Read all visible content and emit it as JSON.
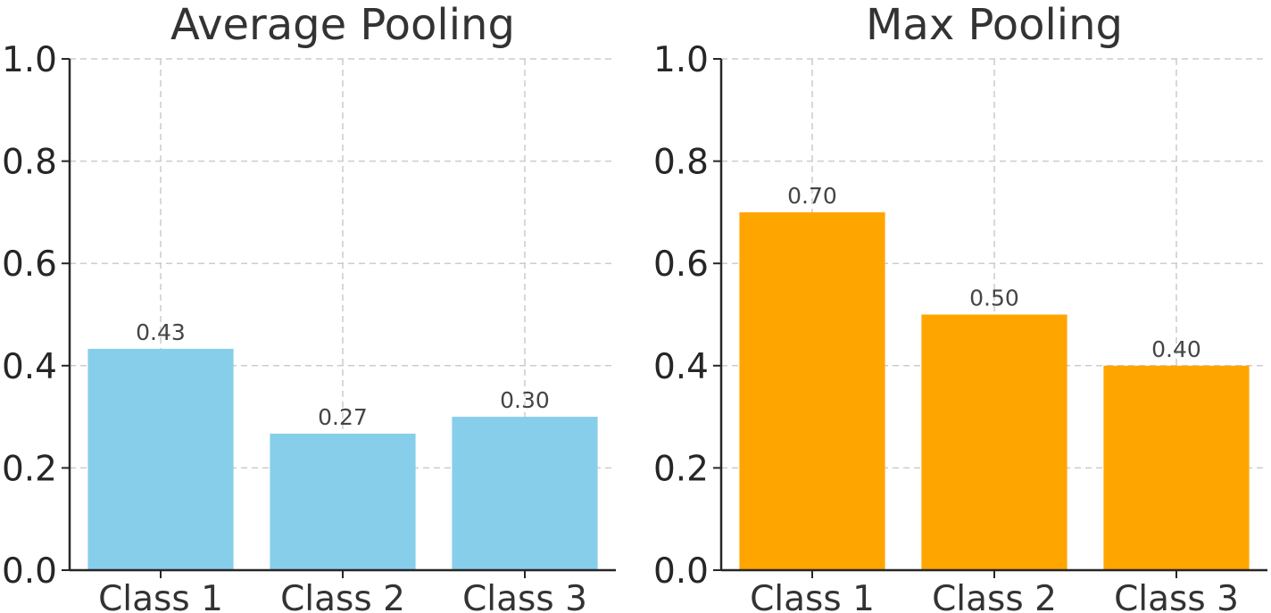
{
  "chart_data": [
    {
      "type": "bar",
      "title": "Average Pooling",
      "categories": [
        "Class 1",
        "Class 2",
        "Class 3"
      ],
      "values": [
        0.433,
        0.267,
        0.3
      ],
      "value_labels": [
        "0.43",
        "0.27",
        "0.30"
      ],
      "ylim": [
        0,
        1.0
      ],
      "yticks": [
        "0.0",
        "0.2",
        "0.4",
        "0.6",
        "0.8",
        "1.0"
      ],
      "ytick_values": [
        0,
        0.2,
        0.4,
        0.6,
        0.8,
        1.0
      ],
      "grid": true,
      "color": "#87CEEB"
    },
    {
      "type": "bar",
      "title": "Max Pooling",
      "categories": [
        "Class 1",
        "Class 2",
        "Class 3"
      ],
      "values": [
        0.7,
        0.5,
        0.4
      ],
      "value_labels": [
        "0.70",
        "0.50",
        "0.40"
      ],
      "ylim": [
        0,
        1.0
      ],
      "yticks": [
        "0.0",
        "0.2",
        "0.4",
        "0.6",
        "0.8",
        "1.0"
      ],
      "ytick_values": [
        0,
        0.2,
        0.4,
        0.6,
        0.8,
        1.0
      ],
      "grid": true,
      "color": "#FFA500"
    }
  ]
}
